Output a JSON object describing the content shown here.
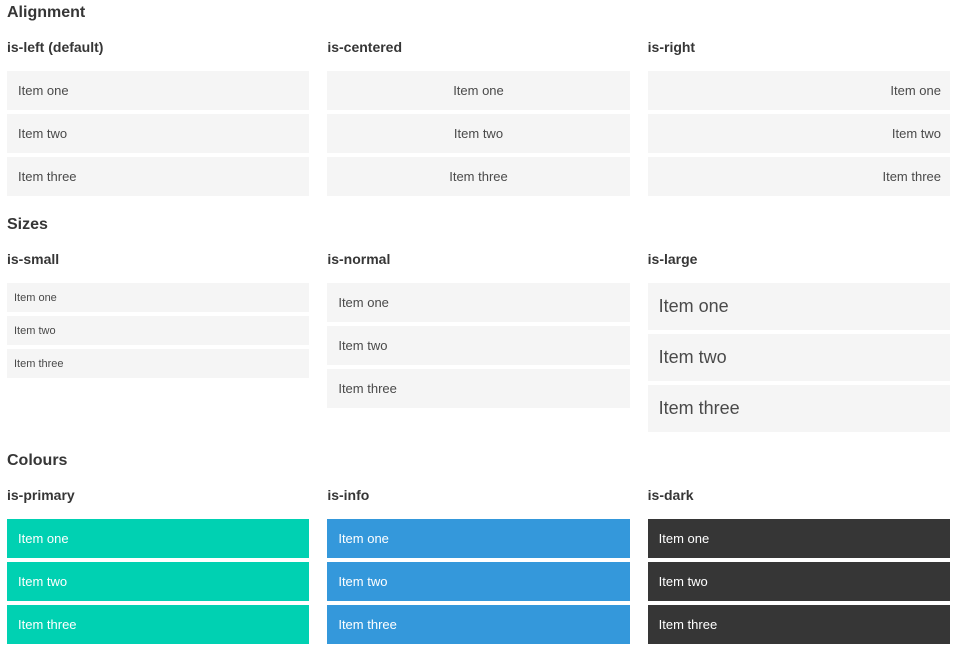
{
  "items": [
    "Item one",
    "Item two",
    "Item three"
  ],
  "sections": [
    {
      "title": "Alignment",
      "variants": [
        {
          "label": "is-left (default)"
        },
        {
          "label": "is-centered"
        },
        {
          "label": "is-right"
        }
      ]
    },
    {
      "title": "Sizes",
      "variants": [
        {
          "label": "is-small"
        },
        {
          "label": "is-normal"
        },
        {
          "label": "is-large"
        }
      ]
    },
    {
      "title": "Colours",
      "variants": [
        {
          "label": "is-primary"
        },
        {
          "label": "is-info"
        },
        {
          "label": "is-dark"
        }
      ]
    }
  ],
  "colors": {
    "primary": "#00d1b2",
    "info": "#3498db",
    "dark": "#363636",
    "item_bg": "#f5f5f5",
    "item_text": "#4a4a4a",
    "heading_text": "#363636",
    "colored_item_text": "#ffffff",
    "page_bg": "#ffffff"
  }
}
